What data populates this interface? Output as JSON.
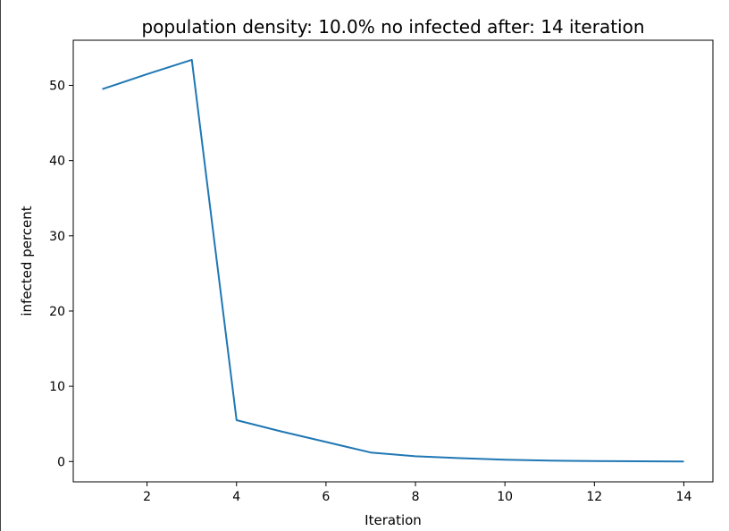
{
  "chart_data": {
    "type": "line",
    "title": "population density: 10.0% no infected after: 14 iteration",
    "xlabel": "Iteration",
    "ylabel": "infected percent",
    "xlim": [
      0.35,
      14.65
    ],
    "ylim": [
      -2.7,
      56.0
    ],
    "x_ticks": [
      "2",
      "4",
      "6",
      "8",
      "10",
      "12",
      "14"
    ],
    "y_ticks": [
      "0",
      "10",
      "20",
      "30",
      "40",
      "50"
    ],
    "grid": false,
    "series_color": "#1f77b4",
    "series": [
      {
        "x": [
          1,
          2,
          3,
          4,
          5,
          6,
          7,
          8,
          9,
          10,
          11,
          12,
          13,
          14
        ],
        "values": [
          49.5,
          51.5,
          53.4,
          5.5,
          4.0,
          2.6,
          1.2,
          0.7,
          0.45,
          0.25,
          0.12,
          0.06,
          0.03,
          0.0
        ]
      }
    ]
  }
}
